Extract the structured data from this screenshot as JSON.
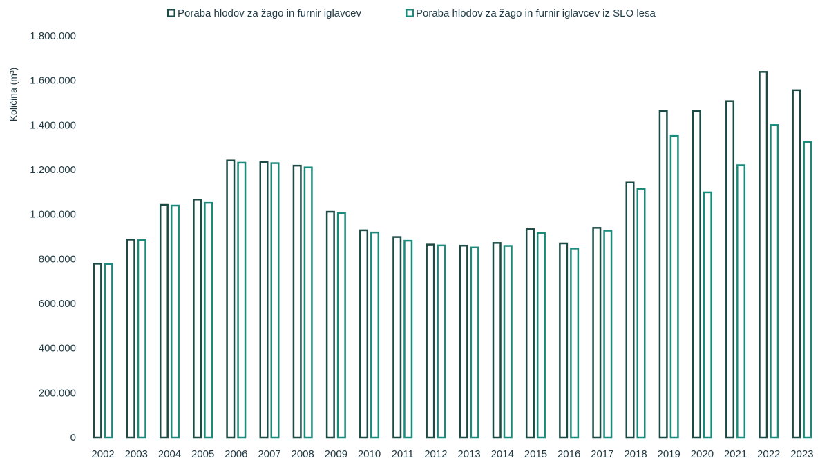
{
  "chart_data": {
    "type": "bar",
    "title": "",
    "xlabel": "",
    "ylabel": "Količina (m³)",
    "ylim": [
      0,
      1800000
    ],
    "yticks": [
      0,
      200000,
      400000,
      600000,
      800000,
      1000000,
      1200000,
      1400000,
      1600000,
      1800000
    ],
    "ytick_labels": [
      "0",
      "200.000",
      "400.000",
      "600.000",
      "800.000",
      "1.000.000",
      "1.200.000",
      "1.400.000",
      "1.600.000",
      "1.800.000"
    ],
    "grid": false,
    "legend_position": "top",
    "categories": [
      "2002",
      "2003",
      "2004",
      "2005",
      "2006",
      "2007",
      "2008",
      "2009",
      "2010",
      "2011",
      "2012",
      "2013",
      "2014",
      "2015",
      "2016",
      "2017",
      "2018",
      "2019",
      "2020",
      "2021",
      "2022",
      "2023"
    ],
    "series": [
      {
        "name": "Poraba hlodov za žago in furnir iglavcev",
        "color": "#1c4a44",
        "values": [
          782000,
          890000,
          1046000,
          1070000,
          1245000,
          1238000,
          1222000,
          1015000,
          932000,
          902000,
          868000,
          863000,
          875000,
          937000,
          873000,
          943000,
          1146000,
          1466000,
          1466000,
          1511000,
          1642000,
          1560000
        ]
      },
      {
        "name": "Poraba hlodov za žago in furnir iglavcev iz SLO lesa",
        "color": "#1a8b7b",
        "values": [
          781000,
          888000,
          1043000,
          1055000,
          1235000,
          1233000,
          1214000,
          1009000,
          922000,
          885000,
          864000,
          855000,
          862000,
          920000,
          850000,
          930000,
          1118000,
          1355000,
          1102000,
          1224000,
          1404000,
          1328000
        ]
      }
    ]
  }
}
